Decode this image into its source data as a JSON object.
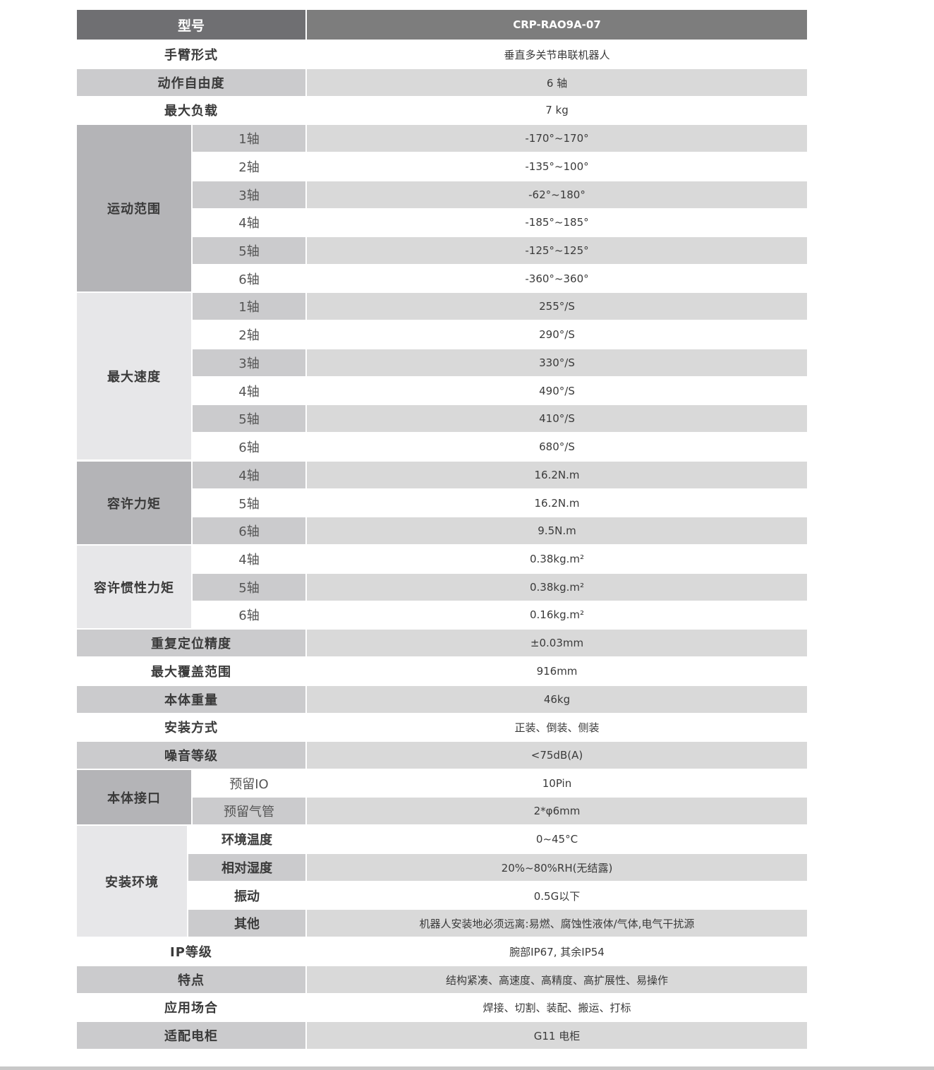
{
  "header": {
    "label": "型号",
    "value": "CRP-RAO9A-07"
  },
  "rows": [
    {
      "label": "手臂形式",
      "value": "垂直多关节串联机器人"
    },
    {
      "label": "动作自由度",
      "value": "6 轴"
    },
    {
      "label": "最大负载",
      "value": "7 kg"
    },
    {
      "group": "运动范围",
      "items": [
        {
          "label": "1轴",
          "value": "-170°~170°"
        },
        {
          "label": "2轴",
          "value": "-135°~100°"
        },
        {
          "label": "3轴",
          "value": "-62°~180°"
        },
        {
          "label": "4轴",
          "value": "-185°~185°"
        },
        {
          "label": "5轴",
          "value": "-125°~125°"
        },
        {
          "label": "6轴",
          "value": "-360°~360°"
        }
      ]
    },
    {
      "group": "最大速度",
      "items": [
        {
          "label": "1轴",
          "value": "255°/S"
        },
        {
          "label": "2轴",
          "value": "290°/S"
        },
        {
          "label": "3轴",
          "value": "330°/S"
        },
        {
          "label": "4轴",
          "value": "490°/S"
        },
        {
          "label": "5轴",
          "value": "410°/S"
        },
        {
          "label": "6轴",
          "value": "680°/S"
        }
      ]
    },
    {
      "group": "容许力矩",
      "items": [
        {
          "label": "4轴",
          "value": "16.2N.m"
        },
        {
          "label": "5轴",
          "value": "16.2N.m"
        },
        {
          "label": "6轴",
          "value": "9.5N.m"
        }
      ]
    },
    {
      "group": "容许惯性力矩",
      "items": [
        {
          "label": "4轴",
          "value": "0.38kg.m²"
        },
        {
          "label": "5轴",
          "value": "0.38kg.m²"
        },
        {
          "label": "6轴",
          "value": "0.16kg.m²"
        }
      ]
    },
    {
      "label": "重复定位精度",
      "value": "±0.03mm"
    },
    {
      "label": "最大覆盖范围",
      "value": "916mm"
    },
    {
      "label": "本体重量",
      "value": "46kg"
    },
    {
      "label": "安装方式",
      "value": "正装、倒装、侧装"
    },
    {
      "label": "噪音等级",
      "value": "<75dB(A)"
    },
    {
      "group": "本体接口",
      "items": [
        {
          "label": "预留IO",
          "value": "10Pin"
        },
        {
          "label": "预留气管",
          "value": "2*φ6mm"
        }
      ]
    },
    {
      "group": "安装环境",
      "items": [
        {
          "label": "环境温度",
          "value": "0~45°C"
        },
        {
          "label": "相对湿度",
          "value": "20%~80%RH(无结露)"
        },
        {
          "label": "振动",
          "value": "0.5G以下"
        },
        {
          "label": "其他",
          "value": "机器人安装地必须远离:易燃、腐蚀性液体/气体,电气干扰源"
        }
      ]
    },
    {
      "label": "IP等级",
      "value": "腕部IP67, 其余IP54"
    },
    {
      "label": "特点",
      "value": "结构紧凑、高速度、高精度、高扩展性、易操作"
    },
    {
      "label": "应用场合",
      "value": "焊接、切割、装配、搬运、打标"
    },
    {
      "label": "适配电柜",
      "value": "G11  电柜"
    }
  ],
  "colors": {
    "header_label": "#6f6f72",
    "header_value": "#7d7d7d",
    "stripe": "#d9d9d9",
    "group_dark": "#b4b4b7",
    "group_light": "#e7e7e9"
  }
}
